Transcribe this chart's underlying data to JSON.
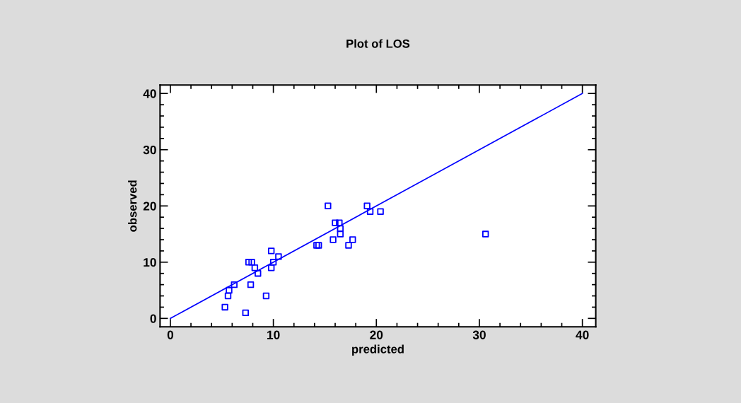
{
  "chart_data": {
    "type": "scatter",
    "title": "Plot of LOS",
    "xlabel": "predicted",
    "ylabel": "observed",
    "xlim": [
      -1,
      41.3
    ],
    "ylim": [
      -1.5,
      41.5
    ],
    "xticks": [
      0,
      10,
      20,
      30,
      40
    ],
    "yticks": [
      0,
      10,
      20,
      30,
      40
    ],
    "grid": false,
    "marker": "square",
    "series": [
      {
        "color": "#0000ff",
        "x": [
          5.3,
          7.3,
          5.6,
          5.7,
          6.2,
          7.8,
          9.3,
          7.6,
          7.9,
          8.2,
          8.5,
          9.8,
          9.8,
          10.0,
          10.5,
          14.2,
          14.4,
          15.3,
          15.8,
          16.0,
          16.4,
          16.5,
          16.5,
          17.3,
          17.7,
          19.1,
          19.4,
          20.4,
          30.6
        ],
        "values": [
          2,
          1,
          4,
          5,
          6,
          6,
          4,
          10,
          10,
          9,
          8,
          12,
          9,
          10,
          11,
          13,
          13,
          20,
          14,
          17,
          17,
          16,
          15,
          13,
          14,
          20,
          19,
          19,
          15
        ]
      },
      {
        "type": "line",
        "color": "#0000ff",
        "marker": "none",
        "x": [
          0,
          40
        ],
        "values": [
          0,
          40
        ]
      }
    ]
  }
}
